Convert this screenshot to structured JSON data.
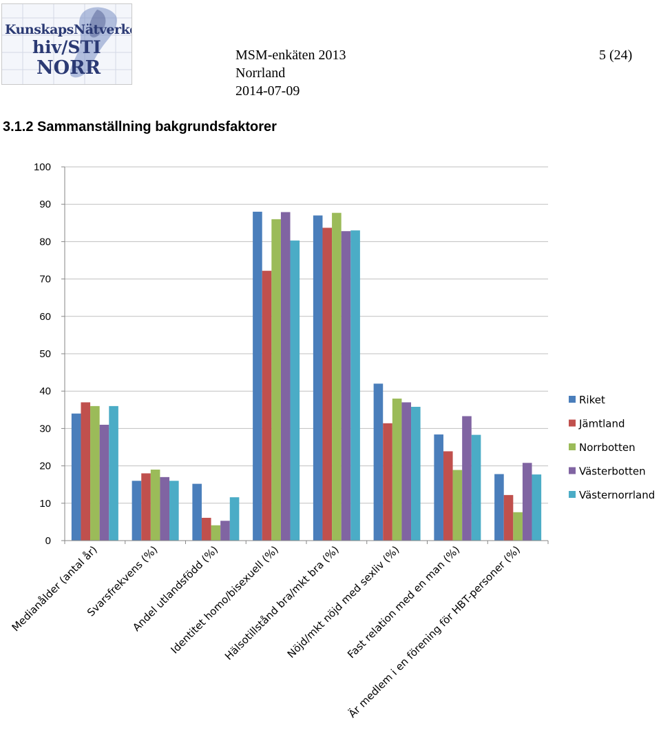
{
  "header": {
    "logo": {
      "line1": "KunskapsNätverket",
      "line2": "hiv/STI",
      "line3": "NORR"
    },
    "survey": "MSM-enkäten 2013",
    "region": "Norrland",
    "date": "2014-07-09",
    "page": "5 (24)"
  },
  "section_title": "3.1.2  Sammanställning bakgrundsfaktorer",
  "colors": {
    "Riket": "#4a7ebb",
    "Jämtland": "#c0504d",
    "Norrbotten": "#9bbb59",
    "Västerbotten": "#8064a2",
    "Västernorrland": "#4bacc6",
    "grid": "#bfbfbf",
    "axis": "#868686"
  },
  "chart_data": {
    "type": "bar",
    "title": "",
    "xlabel": "",
    "ylabel": "",
    "ylim": [
      0,
      100
    ],
    "yticks": [
      0,
      10,
      20,
      30,
      40,
      50,
      60,
      70,
      80,
      90,
      100
    ],
    "grid": true,
    "legend_position": "right",
    "categories": [
      "Medianålder (antal år)",
      "Svarsfrekvens (%)",
      "Andel utlandsfödd (%)",
      "Identitet homo/bisexuell (%)",
      "Hälsotillstånd bra/mkt bra (%)",
      "Nöjd/mkt nöjd med sexliv (%)",
      "Fast relation med en man (%)",
      "Är medlem i en förening för HBT-personer (%)"
    ],
    "series": [
      {
        "name": "Riket",
        "values": [
          34,
          16,
          15.2,
          88,
          87,
          42,
          28.4,
          17.8
        ]
      },
      {
        "name": "Jämtland",
        "values": [
          37,
          18,
          6.1,
          72.2,
          83.7,
          31.4,
          23.9,
          12.2
        ]
      },
      {
        "name": "Norrbotten",
        "values": [
          36,
          19,
          4.1,
          86,
          87.7,
          38,
          18.9,
          7.6
        ]
      },
      {
        "name": "Västerbotten",
        "values": [
          31,
          17,
          5.3,
          87.9,
          82.8,
          37,
          33.3,
          20.8
        ]
      },
      {
        "name": "Västernorrland",
        "values": [
          36,
          16,
          11.6,
          80.3,
          83,
          35.8,
          28.3,
          17.7
        ]
      }
    ]
  }
}
